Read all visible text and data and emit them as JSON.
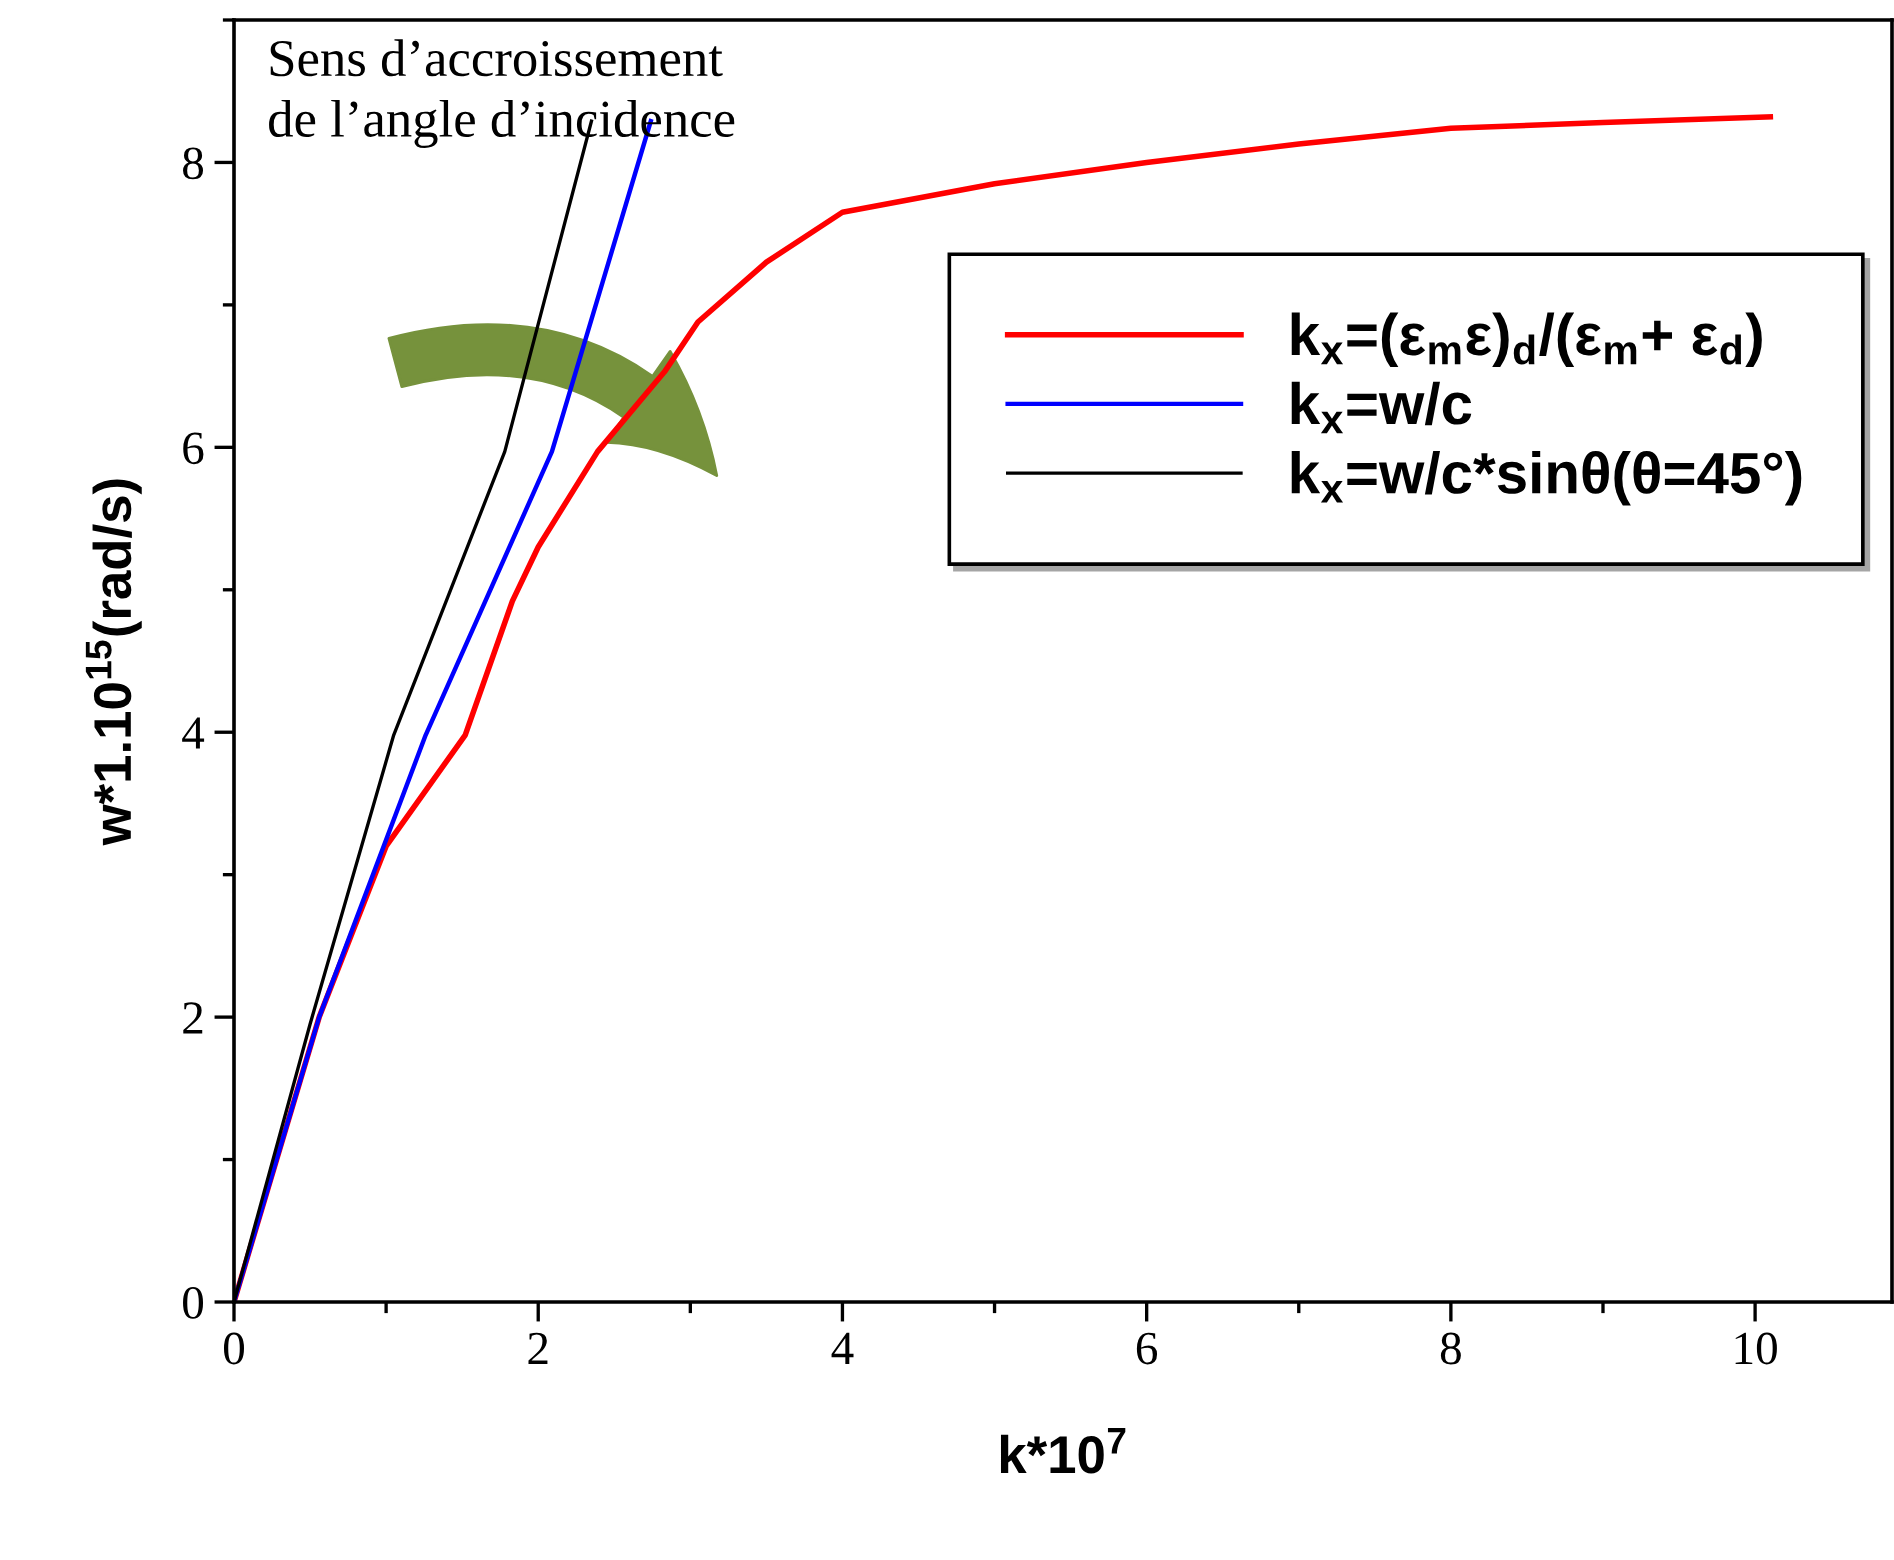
{
  "chart_data": {
    "type": "line",
    "xlabel": "k*10$^{7}$",
    "ylabel": "w*1.10$^{15}$(rad/s)",
    "xlim": [
      0,
      10.9
    ],
    "ylim": [
      0,
      9
    ],
    "xticks": [
      0,
      2,
      4,
      6,
      8,
      10
    ],
    "yticks": [
      0,
      2,
      4,
      6,
      8
    ],
    "grid": false,
    "legend": "right",
    "line_style": "solid",
    "marker": "none",
    "annotations": [
      "Sens d’accroissement\nde l’angle d’incidence"
    ],
    "series": [
      {
        "name": "k$_{x}$=(ε$_{m}$ε)$_{d}$/(ε$_{m}$+ ε$_{d}$)",
        "color": "#ff0000",
        "x": [
          0,
          0.56,
          1.0,
          1.52,
          1.83,
          2.0,
          2.39,
          2.83,
          3.05,
          3.5,
          4,
          5,
          6,
          7,
          8,
          9,
          10.1
        ],
        "values": [
          0,
          2.0,
          3.2,
          3.98,
          4.92,
          5.3,
          5.97,
          6.53,
          6.88,
          7.3,
          7.65,
          7.85,
          8.0,
          8.13,
          8.24,
          8.28,
          8.32
        ]
      },
      {
        "name": "k$_{x}$=w/c",
        "color": "#0000ff",
        "x": [
          0,
          0.56,
          1.26,
          2.09,
          2.74
        ],
        "values": [
          0,
          2.0,
          3.98,
          5.97,
          8.29
        ]
      },
      {
        "name": "k$_{x}$=w/c*sinθ(θ=45°)",
        "color": "#000000",
        "x": [
          0,
          0.5,
          1.05,
          1.78,
          2.35
        ],
        "values": [
          0,
          1.95,
          3.98,
          5.97,
          8.29
        ]
      }
    ]
  }
}
